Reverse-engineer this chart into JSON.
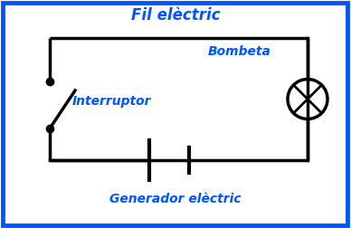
{
  "bg_color": "#ffffff",
  "border_color": "#0055ff",
  "wire_color": "#000000",
  "label_color": "#0055ff",
  "title": "Fil elèctric",
  "label_interruptor": "Interruptor",
  "label_bombeta": "Bombeta",
  "label_generador": "Generador elèctric",
  "font_size_labels": 10,
  "font_size_title": 12,
  "fig_width": 3.88,
  "fig_height": 2.52,
  "dpi": 100
}
